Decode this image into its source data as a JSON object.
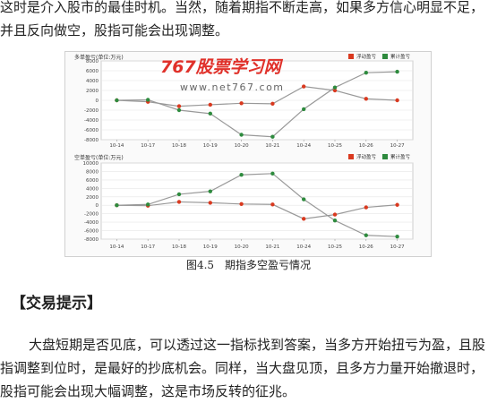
{
  "text": {
    "para1": "这时是介入股市的最佳时机。当然，随着期指不断走高，如果多方信心明显不足，并且反向做空，股指可能会出现调整。",
    "caption": "图4.5　期指多空盈亏情况",
    "heading": "【交易提示】",
    "para2": "大盘短期是否见底，可以透过这一指标找到答案，当多方开始扭亏为盈，且股指调整到位时，是最好的抄底机会。同样，当大盘见顶，且多方力量开始撤退时，股指可能会出现大幅调整，这是市场反转的征兆。"
  },
  "watermark": {
    "logo": "767股票学习网",
    "url": "www.net767.com"
  },
  "colors": {
    "series_daily": "#d9391f",
    "series_cumulative": "#2e8b3e",
    "line": "#999999"
  },
  "chart_data": [
    {
      "type": "line",
      "title": "多单盈亏(单位:万元)",
      "x": [
        "10-14",
        "10-17",
        "10-18",
        "10-19",
        "10-20",
        "10-21",
        "10-24",
        "10-25",
        "10-26",
        "10-27"
      ],
      "yticks": [
        8000,
        6000,
        4000,
        2000,
        0,
        -2000,
        -4000,
        -6000,
        -8000
      ],
      "ylim": [
        -8000,
        8000
      ],
      "series": [
        {
          "name": "浮动盈亏",
          "values": [
            0,
            -300,
            -1200,
            -900,
            -600,
            -700,
            2800,
            2000,
            300,
            0
          ]
        },
        {
          "name": "累计盈亏",
          "values": [
            0,
            100,
            -2000,
            -2700,
            -7000,
            -7400,
            -1800,
            2600,
            5600,
            5800
          ]
        }
      ],
      "legend": "top-right"
    },
    {
      "type": "line",
      "title": "空单盈亏(单位:万元)",
      "x": [
        "10-14",
        "10-17",
        "10-18",
        "10-19",
        "10-20",
        "10-21",
        "10-24",
        "10-25",
        "10-26",
        "10-27"
      ],
      "yticks": [
        10000,
        8000,
        6000,
        4000,
        2000,
        0,
        -2000,
        -4000,
        -6000,
        -8000
      ],
      "ylim": [
        -8000,
        10000
      ],
      "series": [
        {
          "name": "浮动盈亏",
          "values": [
            0,
            -100,
            800,
            600,
            300,
            200,
            -3200,
            -2200,
            -500,
            100
          ]
        },
        {
          "name": "累计盈亏",
          "values": [
            0,
            200,
            2600,
            3300,
            7200,
            7500,
            1400,
            -3600,
            -7100,
            -7400
          ]
        }
      ],
      "legend": "top-right"
    }
  ]
}
